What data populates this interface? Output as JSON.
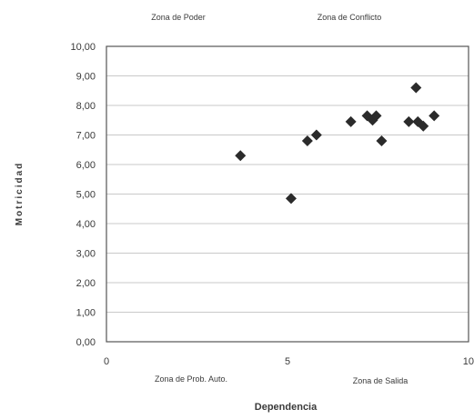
{
  "chart_data": {
    "type": "scatter",
    "xlabel": "Dependencia",
    "ylabel": "Motricidad",
    "xlim": [
      0,
      10
    ],
    "ylim": [
      0,
      10
    ],
    "x_ticks": [
      "0",
      "5",
      "10"
    ],
    "y_ticks": [
      "0,00",
      "1,00",
      "2,00",
      "3,00",
      "4,00",
      "5,00",
      "6,00",
      "7,00",
      "8,00",
      "9,00",
      "10,00"
    ],
    "grid": true,
    "marker": "diamond",
    "marker_color": "#2b2b2b",
    "zones": {
      "top_left": "Zona  de  Poder",
      "top_right": "Zona  de  Conflicto",
      "bottom_left": "Zona  de Prob. Auto.",
      "bottom_right": "Zona  de  Salida"
    },
    "points": [
      {
        "x": 3.7,
        "y": 6.3
      },
      {
        "x": 5.1,
        "y": 4.85
      },
      {
        "x": 5.55,
        "y": 6.8
      },
      {
        "x": 5.8,
        "y": 7.0
      },
      {
        "x": 6.75,
        "y": 7.45
      },
      {
        "x": 7.2,
        "y": 7.65
      },
      {
        "x": 7.35,
        "y": 7.5
      },
      {
        "x": 7.45,
        "y": 7.65
      },
      {
        "x": 7.6,
        "y": 6.8
      },
      {
        "x": 8.35,
        "y": 7.45
      },
      {
        "x": 8.55,
        "y": 8.6
      },
      {
        "x": 8.6,
        "y": 7.45
      },
      {
        "x": 8.75,
        "y": 7.3
      },
      {
        "x": 9.05,
        "y": 7.65
      }
    ]
  }
}
